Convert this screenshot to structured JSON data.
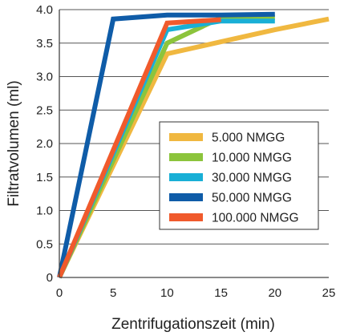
{
  "chart_data": {
    "type": "line",
    "title": "",
    "xlabel": "Zentrifugationszeit (min)",
    "ylabel": "Filtratvolumen (ml)",
    "xlim": [
      0,
      25
    ],
    "ylim": [
      0,
      4.0
    ],
    "x_ticks": [
      "0",
      "5",
      "10",
      "15",
      "20",
      "25"
    ],
    "y_ticks": [
      "0",
      "0.5",
      "1.0",
      "1.5",
      "2.0",
      "2.5",
      "3.0",
      "3.5",
      "4.0"
    ],
    "grid": "horizontal",
    "legend_position": "right",
    "series": [
      {
        "name": "5.000 NMGG",
        "color": "#f0b840",
        "x": [
          0,
          10,
          15,
          20,
          25
        ],
        "y": [
          0,
          3.34,
          3.52,
          3.7,
          3.86
        ]
      },
      {
        "name": "10.000 NMGG",
        "color": "#8cc43c",
        "x": [
          0,
          10,
          15,
          20
        ],
        "y": [
          0,
          3.5,
          3.88,
          3.88
        ]
      },
      {
        "name": "30.000 NMGG",
        "color": "#19afd6",
        "x": [
          0,
          10,
          15,
          20
        ],
        "y": [
          0,
          3.7,
          3.83,
          3.83
        ]
      },
      {
        "name": "50.000 NMGG",
        "color": "#0f5ca8",
        "x": [
          0,
          5,
          10,
          15,
          20
        ],
        "y": [
          0,
          3.86,
          3.92,
          3.92,
          3.93
        ]
      },
      {
        "name": "100.000 NMGG",
        "color": "#f05a2c",
        "x": [
          0,
          10,
          15
        ],
        "y": [
          0,
          3.8,
          3.85
        ]
      }
    ]
  }
}
